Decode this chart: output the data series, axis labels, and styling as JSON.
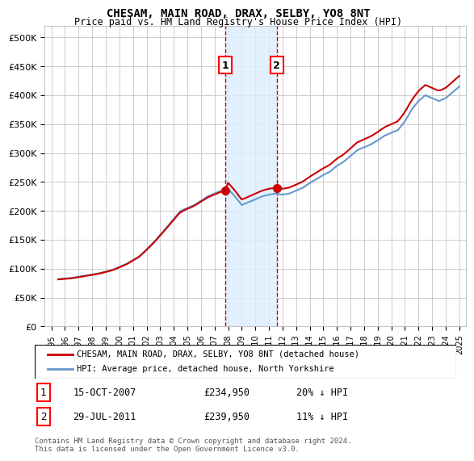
{
  "title": "CHESAM, MAIN ROAD, DRAX, SELBY, YO8 8NT",
  "subtitle": "Price paid vs. HM Land Registry's House Price Index (HPI)",
  "xlim": [
    1994.5,
    2025.5
  ],
  "ylim": [
    0,
    520000
  ],
  "yticks": [
    0,
    50000,
    100000,
    150000,
    200000,
    250000,
    300000,
    350000,
    400000,
    450000,
    500000
  ],
  "xticks": [
    "1995",
    "1996",
    "1997",
    "1998",
    "1999",
    "2000",
    "2001",
    "2002",
    "2003",
    "2004",
    "2005",
    "2006",
    "2007",
    "2008",
    "2009",
    "2010",
    "2011",
    "2012",
    "2013",
    "2014",
    "2015",
    "2016",
    "2017",
    "2018",
    "2019",
    "2020",
    "2021",
    "2022",
    "2023",
    "2024",
    "2025"
  ],
  "transaction1": {
    "date": "15-OCT-2007",
    "year": 2007.79,
    "price": 234950,
    "label": "1",
    "pct": "20%",
    "dir": "↓"
  },
  "transaction2": {
    "date": "29-JUL-2011",
    "year": 2011.57,
    "price": 239950,
    "label": "2",
    "pct": "11%",
    "dir": "↓"
  },
  "legend_line1": "CHESAM, MAIN ROAD, DRAX, SELBY, YO8 8NT (detached house)",
  "legend_line2": "HPI: Average price, detached house, North Yorkshire",
  "footer": "Contains HM Land Registry data © Crown copyright and database right 2024.\nThis data is licensed under the Open Government Licence v3.0.",
  "line_color_red": "#cc0000",
  "line_color_blue": "#6699cc",
  "shade_color": "#ddeeff",
  "grid_color": "#cccccc",
  "bg_color": "#ffffff"
}
